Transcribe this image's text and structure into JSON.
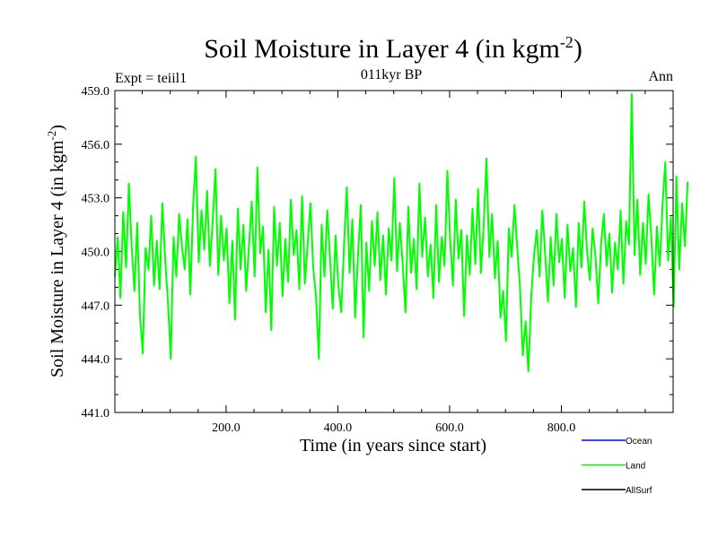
{
  "chart_data": {
    "type": "line",
    "title": "Soil Moisture in Layer 4 (in kgm",
    "title_sup": "-2",
    "title_close": ")",
    "subtitle": "011kyr BP",
    "left_label": "Expt = teiil1",
    "right_label": "Ann",
    "xlabel": "Time (in years since start)",
    "ylabel": "Soil Moisture in Layer 4 (in kgm",
    "ylabel_sup": "-2",
    "ylabel_close": ")",
    "xlim": [
      1,
      1000
    ],
    "ylim": [
      441.0,
      459.0
    ],
    "xticks": [
      200,
      400,
      600,
      800
    ],
    "xtick_labels": [
      "200.0",
      "400.0",
      "600.0",
      "800.0"
    ],
    "yticks": [
      441,
      444,
      447,
      450,
      453,
      456,
      459
    ],
    "ytick_labels": [
      "441.0",
      "444.0",
      "447.0",
      "450.0",
      "453.0",
      "456.0",
      "459.0"
    ],
    "grid": false,
    "legend_position": "bottom-right",
    "series": [
      {
        "name": "Ocean",
        "color": "#0000ff",
        "values": []
      },
      {
        "name": "Land",
        "color": "#00ff00",
        "x_start": 1,
        "x_step": 5,
        "values": [
          448.6,
          450.8,
          447.4,
          452.2,
          449.1,
          453.8,
          450.3,
          447.8,
          451.6,
          446.4,
          444.3,
          450.2,
          449.0,
          452.0,
          448.1,
          450.6,
          447.9,
          452.7,
          449.6,
          447.2,
          444.0,
          450.8,
          448.6,
          452.1,
          450.3,
          449.0,
          451.8,
          447.6,
          452.6,
          455.3,
          449.4,
          452.3,
          450.1,
          453.4,
          449.2,
          451.7,
          454.6,
          448.7,
          452.0,
          449.5,
          451.3,
          447.1,
          450.6,
          446.2,
          452.4,
          449.0,
          451.5,
          447.8,
          450.3,
          452.8,
          448.6,
          454.7,
          449.9,
          451.4,
          446.6,
          450.1,
          445.6,
          452.5,
          449.2,
          451.6,
          447.5,
          450.7,
          448.3,
          452.9,
          449.8,
          451.2,
          447.9,
          453.1,
          448.2,
          450.4,
          452.7,
          449.1,
          447.5,
          444.0,
          451.5,
          448.6,
          452.3,
          449.6,
          446.8,
          450.9,
          448.1,
          446.6,
          450.3,
          453.6,
          448.8,
          451.8,
          446.3,
          449.7,
          452.6,
          445.2,
          450.5,
          447.8,
          451.7,
          449.2,
          452.2,
          448.4,
          450.9,
          447.6,
          451.3,
          449.5,
          454.1,
          448.9,
          451.6,
          449.3,
          446.6,
          452.5,
          448.8,
          450.7,
          447.9,
          453.8,
          449.7,
          451.9,
          448.6,
          450.4,
          447.4,
          452.6,
          448.3,
          450.8,
          449.2,
          454.5,
          450.6,
          448.1,
          452.9,
          449.6,
          451.2,
          446.4,
          450.9,
          448.7,
          452.4,
          449.3,
          453.5,
          448.8,
          451.4,
          455.2,
          449.7,
          452.1,
          448.5,
          450.6,
          446.3,
          447.8,
          445.0,
          451.3,
          449.7,
          452.6,
          450.2,
          448.0,
          444.2,
          446.1,
          443.3,
          447.5,
          449.8,
          451.2,
          448.6,
          452.3,
          449.9,
          447.2,
          450.8,
          448.1,
          452.1,
          449.4,
          450.7,
          447.4,
          451.5,
          448.9,
          450.2,
          446.9,
          451.6,
          449.1,
          452.8,
          450.0,
          448.4,
          451.3,
          449.7,
          447.1,
          450.4,
          452.1,
          449.2,
          451.0,
          447.7,
          450.5,
          449.0,
          452.3,
          448.2,
          451.7,
          450.4,
          458.8,
          449.8,
          452.9,
          448.7,
          451.6,
          449.3,
          453.2,
          450.8,
          447.6,
          451.4,
          449.2,
          452.6,
          455.0,
          449.5,
          451.9,
          446.9,
          454.2,
          449.0,
          452.7,
          450.3,
          453.9
        ]
      },
      {
        "name": "AllSurf",
        "color": "#000000",
        "values": []
      }
    ]
  }
}
